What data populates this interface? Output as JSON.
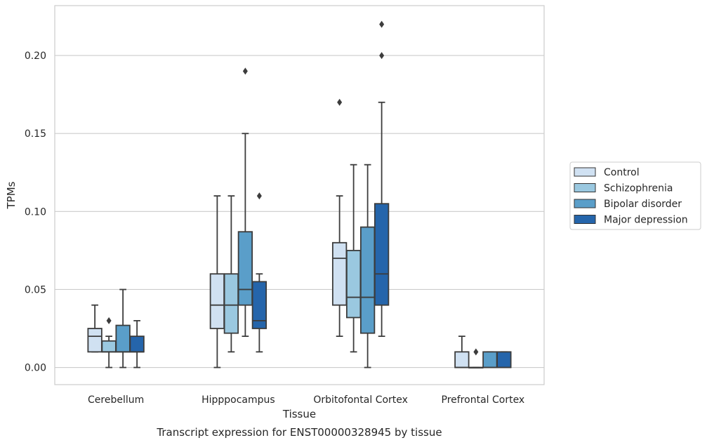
{
  "chart_data": {
    "type": "box",
    "xlabel": "Tissue",
    "ylabel": "TPMs",
    "caption": "Transcript expression for ENST00000328945 by tissue",
    "ylim": [
      -0.011,
      0.232
    ],
    "yticks": [
      "0.00",
      "0.05",
      "0.10",
      "0.15",
      "0.20"
    ],
    "grid": "horizontal",
    "legend_position": "right",
    "categories": [
      "Cerebellum",
      "Hipppocampus",
      "Orbitofontal Cortex",
      "Prefrontal Cortex"
    ],
    "series": [
      {
        "name": "Control",
        "color": "#d0e1f2",
        "boxes": [
          {
            "min": 0.01,
            "q1": 0.01,
            "median": 0.02,
            "q3": 0.025,
            "max": 0.04,
            "outliers": []
          },
          {
            "min": 0.0,
            "q1": 0.025,
            "median": 0.04,
            "q3": 0.06,
            "max": 0.11,
            "outliers": []
          },
          {
            "min": 0.02,
            "q1": 0.04,
            "median": 0.07,
            "q3": 0.08,
            "max": 0.11,
            "outliers": [
              0.17
            ]
          },
          {
            "min": 0.0,
            "q1": 0.0,
            "median": 0.0,
            "q3": 0.01,
            "max": 0.02,
            "outliers": []
          }
        ]
      },
      {
        "name": "Schizophrenia",
        "color": "#9ac8e0",
        "boxes": [
          {
            "min": 0.0,
            "q1": 0.01,
            "median": 0.01,
            "q3": 0.017,
            "max": 0.02,
            "outliers": [
              0.03
            ]
          },
          {
            "min": 0.01,
            "q1": 0.022,
            "median": 0.04,
            "q3": 0.06,
            "max": 0.11,
            "outliers": []
          },
          {
            "min": 0.01,
            "q1": 0.032,
            "median": 0.045,
            "q3": 0.075,
            "max": 0.13,
            "outliers": []
          },
          {
            "min": 0.0,
            "q1": 0.0,
            "median": 0.0,
            "q3": 0.0,
            "max": 0.0,
            "outliers": [
              0.01
            ]
          }
        ]
      },
      {
        "name": "Bipolar disorder",
        "color": "#5a9ec9",
        "boxes": [
          {
            "min": 0.0,
            "q1": 0.01,
            "median": 0.01,
            "q3": 0.027,
            "max": 0.05,
            "outliers": []
          },
          {
            "min": 0.02,
            "q1": 0.04,
            "median": 0.05,
            "q3": 0.087,
            "max": 0.15,
            "outliers": [
              0.19
            ]
          },
          {
            "min": 0.0,
            "q1": 0.022,
            "median": 0.045,
            "q3": 0.09,
            "max": 0.13,
            "outliers": []
          },
          {
            "min": 0.0,
            "q1": 0.0,
            "median": 0.0,
            "q3": 0.01,
            "max": 0.01,
            "outliers": []
          }
        ]
      },
      {
        "name": "Major depression",
        "color": "#2565ab",
        "boxes": [
          {
            "min": 0.0,
            "q1": 0.01,
            "median": 0.01,
            "q3": 0.02,
            "max": 0.03,
            "outliers": []
          },
          {
            "min": 0.01,
            "q1": 0.025,
            "median": 0.03,
            "q3": 0.055,
            "max": 0.06,
            "outliers": [
              0.11
            ]
          },
          {
            "min": 0.02,
            "q1": 0.04,
            "median": 0.06,
            "q3": 0.105,
            "max": 0.17,
            "outliers": [
              0.2,
              0.22
            ]
          },
          {
            "min": 0.0,
            "q1": 0.0,
            "median": 0.0,
            "q3": 0.01,
            "max": 0.01,
            "outliers": []
          }
        ]
      }
    ]
  }
}
